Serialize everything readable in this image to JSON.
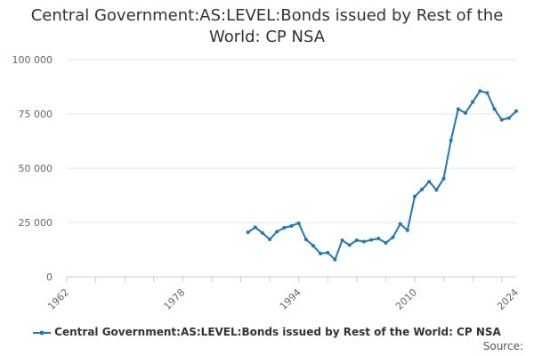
{
  "chart_data": {
    "type": "line",
    "title": "Central Government:AS:LEVEL:Bonds issued by Rest of the World: CP NSA",
    "xlabel": "",
    "ylabel": "",
    "xlim": [
      1962,
      2024
    ],
    "ylim": [
      0,
      100000
    ],
    "x_ticks": [
      1962,
      1978,
      1994,
      2010,
      2024
    ],
    "y_ticks": [
      {
        "value": 0,
        "label": "0"
      },
      {
        "value": 25000,
        "label": "25 000"
      },
      {
        "value": 50000,
        "label": "50 000"
      },
      {
        "value": 75000,
        "label": "75 000"
      },
      {
        "value": 100000,
        "label": "100 000"
      }
    ],
    "grid": "horizontal",
    "legend_position": "bottom",
    "series": [
      {
        "name": "Central Government:AS:LEVEL:Bonds issued by Rest of the World: CP NSA",
        "color": "#1f77b4",
        "points": [
          [
            1987,
            20500
          ],
          [
            1988,
            22800
          ],
          [
            1989,
            20200
          ],
          [
            1990,
            17200
          ],
          [
            1991,
            20800
          ],
          [
            1992,
            22600
          ],
          [
            1993,
            23400
          ],
          [
            1994,
            24700
          ],
          [
            1995,
            17200
          ],
          [
            1996,
            14300
          ],
          [
            1997,
            10700
          ],
          [
            1998,
            11100
          ],
          [
            1999,
            7900
          ],
          [
            2000,
            16800
          ],
          [
            2001,
            14600
          ],
          [
            2002,
            16800
          ],
          [
            2003,
            16200
          ],
          [
            2004,
            17000
          ],
          [
            2005,
            17600
          ],
          [
            2006,
            15600
          ],
          [
            2007,
            18200
          ],
          [
            2008,
            24400
          ],
          [
            2009,
            21400
          ],
          [
            2010,
            37000
          ],
          [
            2011,
            40200
          ],
          [
            2012,
            43800
          ],
          [
            2013,
            40000
          ],
          [
            2014,
            45200
          ],
          [
            2015,
            62800
          ],
          [
            2016,
            77200
          ],
          [
            2017,
            75400
          ],
          [
            2018,
            80500
          ],
          [
            2019,
            85500
          ],
          [
            2020,
            84700
          ],
          [
            2021,
            77200
          ],
          [
            2022,
            72300
          ],
          [
            2023,
            73100
          ],
          [
            2024,
            76300
          ]
        ]
      }
    ],
    "source_label": "Source:"
  }
}
